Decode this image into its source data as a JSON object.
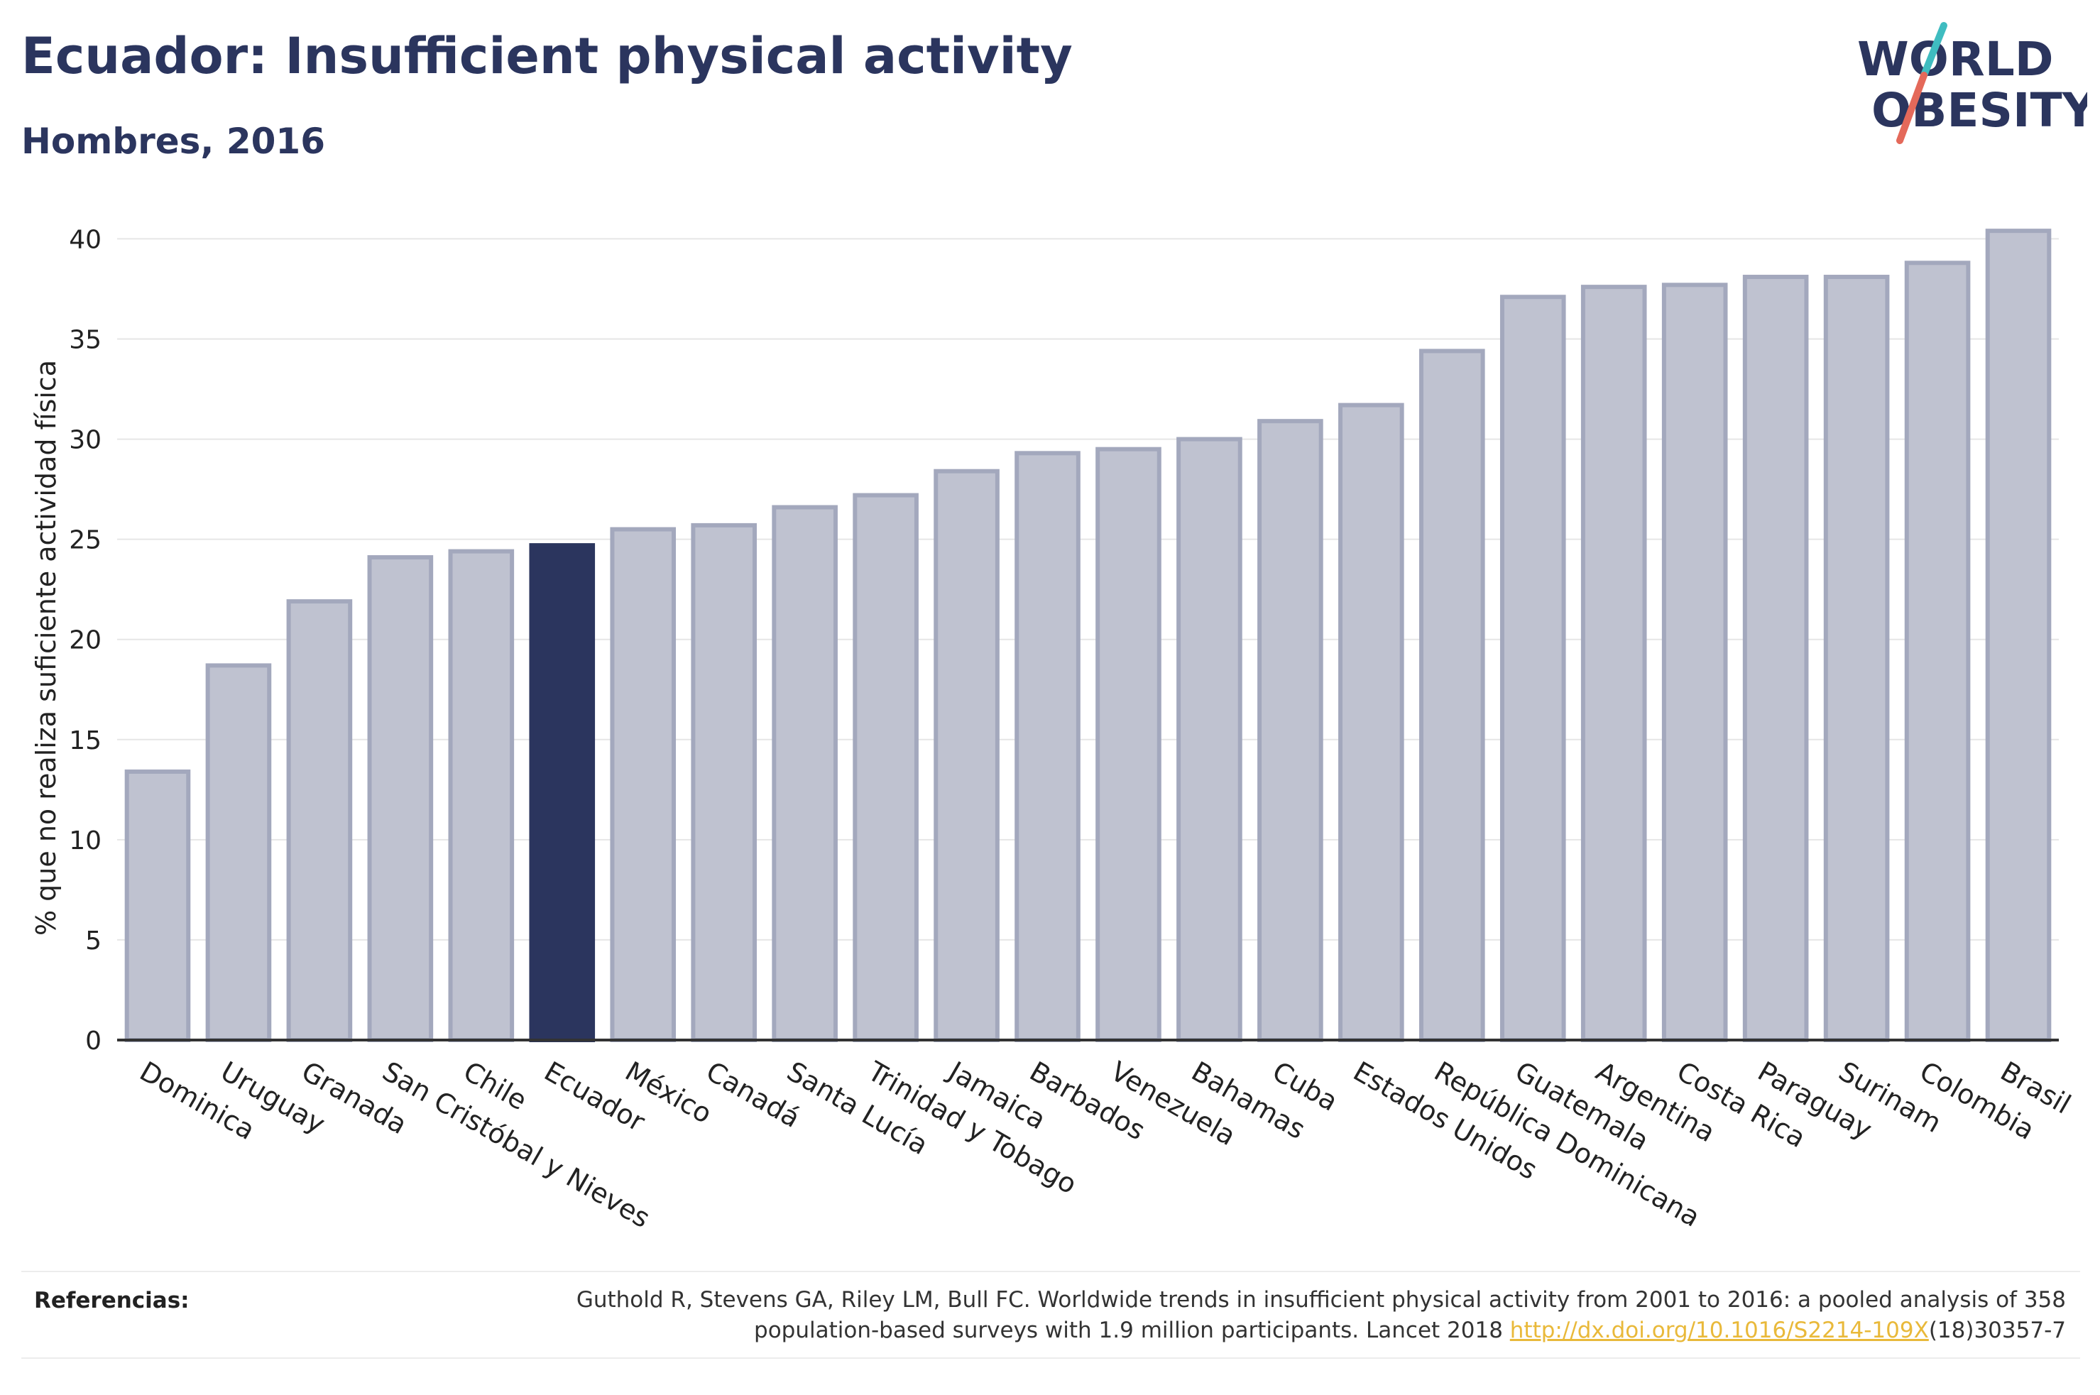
{
  "header": {
    "title": "Ecuador: Insufficient physical activity",
    "subtitle": "Hombres, 2016"
  },
  "logo": {
    "line1": "WORLD",
    "line2": "OBESITY",
    "text_color": "#2b355e",
    "slash_colors": [
      "#3fbcc0",
      "#e4695a"
    ]
  },
  "chart_data": {
    "type": "bar",
    "ylabel": "% que no realiza suficiente actividad física",
    "xlabel": "",
    "ylim": [
      0,
      42
    ],
    "yticks": [
      0,
      5,
      10,
      15,
      20,
      25,
      30,
      35,
      40
    ],
    "grid": true,
    "highlight": "Ecuador",
    "colors": {
      "bar": "#bfc2d0",
      "bar_border": "#a3a8bd",
      "highlight": "#2b355e"
    },
    "categories": [
      "Dominica",
      "Uruguay",
      "Granada",
      "San Cristóbal y Nieves",
      "Chile",
      "Ecuador",
      "México",
      "Canadá",
      "Santa Lucía",
      "Trinidad y Tobago",
      "Jamaica",
      "Barbados",
      "Venezuela",
      "Bahamas",
      "Cuba",
      "Estados Unidos",
      "República Dominicana",
      "Guatemala",
      "Argentina",
      "Costa Rica",
      "Paraguay",
      "Surinam",
      "Colombia",
      "Brasil"
    ],
    "values": [
      13.4,
      18.7,
      21.9,
      24.1,
      24.4,
      24.7,
      25.5,
      25.7,
      26.6,
      27.2,
      28.4,
      29.3,
      29.5,
      30.0,
      30.9,
      31.7,
      34.4,
      37.1,
      37.6,
      37.7,
      38.1,
      38.1,
      38.8,
      40.4
    ]
  },
  "references": {
    "label": "Referencias:",
    "line1": "Guthold R, Stevens GA, Riley LM, Bull FC. Worldwide trends in insufficient physical activity from 2001 to 2016: a pooled analysis of 358",
    "line2_prefix": "population-based surveys with 1.9 million participants. Lancet 2018 ",
    "link": "http://dx.doi.org/10.1016/S2214-109X",
    "line2_suffix": "(18)30357-7"
  }
}
